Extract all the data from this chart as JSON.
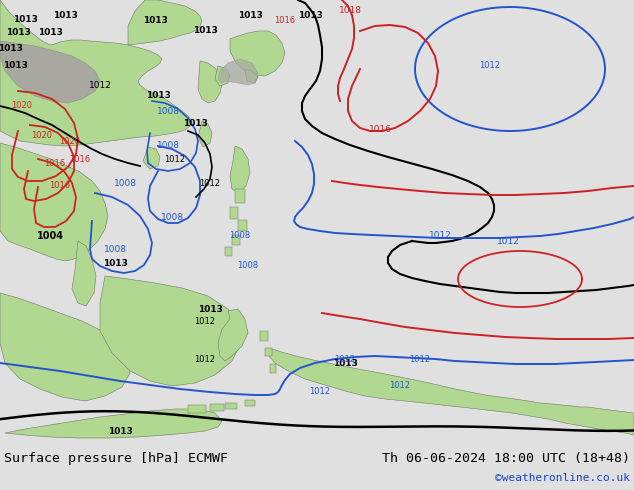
{
  "title_left": "Surface pressure [hPa] ECMWF",
  "title_right": "Th 06-06-2024 18:00 UTC (18+48)",
  "credit": "©weatheronline.co.uk",
  "bottom_bg": "#e0e0e0",
  "ocean_color": "#d8d8d8",
  "land_green": "#b0d890",
  "land_grey": "#a8a8a0",
  "black_color": "#000000",
  "blue_color": "#2255cc",
  "red_color": "#cc2222",
  "title_fontsize": 9.5,
  "credit_fontsize": 8,
  "credit_color": "#1144cc"
}
